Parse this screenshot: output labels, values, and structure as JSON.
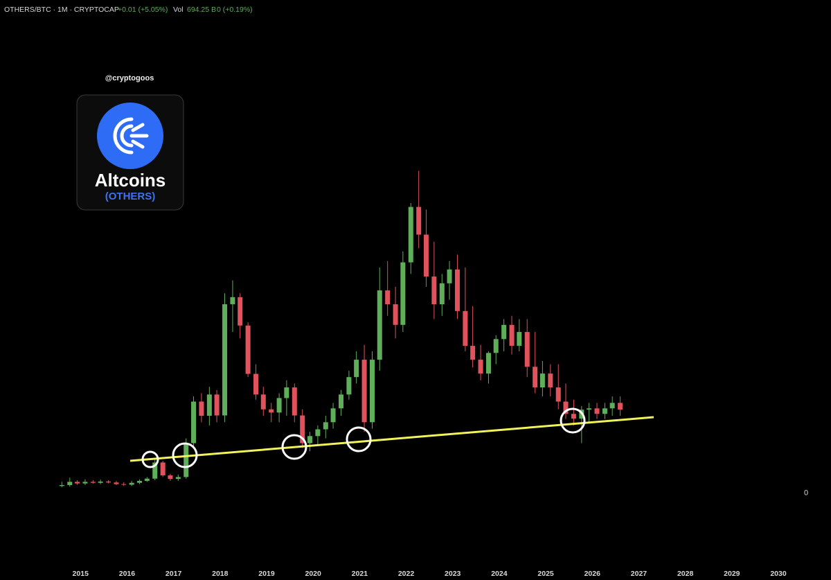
{
  "header": {
    "symbol": "OTHERS/BTC · 1M · CRYPTOCAP",
    "change": "+0.01 (+5.05%)",
    "vol_label": "Vol",
    "vol_value": "694.25 B",
    "vol_change": "0 (+0.19%)"
  },
  "watermark": {
    "handle": "@cryptogoos",
    "logo_title": "Altcoins",
    "logo_subtitle": "(OTHERS)"
  },
  "chart_data": {
    "type": "candlestick",
    "up_color": "#5fae5a",
    "down_color": "#e0525c",
    "xlim": [
      2013.27,
      2030.58
    ],
    "xticks": [
      2015,
      2016,
      2017,
      2018,
      2019,
      2020,
      2021,
      2022,
      2023,
      2024,
      2025,
      2026,
      2027,
      2028,
      2029,
      2030
    ],
    "ylim": [
      -19,
      153
    ],
    "yticks": [
      0
    ],
    "x": [
      2014.6,
      2014.77,
      2014.93,
      2015.1,
      2015.27,
      2015.43,
      2015.6,
      2015.77,
      2015.93,
      2016.1,
      2016.27,
      2016.43,
      2016.6,
      2016.77,
      2016.93,
      2017.1,
      2017.27,
      2017.43,
      2017.6,
      2017.77,
      2017.93,
      2018.1,
      2018.27,
      2018.43,
      2018.6,
      2018.77,
      2018.93,
      2019.1,
      2019.27,
      2019.43,
      2019.6,
      2019.77,
      2019.93,
      2020.1,
      2020.27,
      2020.43,
      2020.6,
      2020.77,
      2020.93,
      2021.1,
      2021.27,
      2021.43,
      2021.6,
      2021.77,
      2021.93,
      2022.1,
      2022.27,
      2022.43,
      2022.6,
      2022.77,
      2022.93,
      2023.1,
      2023.27,
      2023.43,
      2023.6,
      2023.77,
      2023.93,
      2024.1,
      2024.27,
      2024.43,
      2024.6,
      2024.77,
      2024.93,
      2025.1,
      2025.27,
      2025.43,
      2025.6,
      2025.77,
      2025.93,
      2026.1,
      2026.27,
      2026.43,
      2026.6
    ],
    "open": [
      2.2,
      2.5,
      3.5,
      3,
      3.5,
      3.2,
      3.6,
      3.3,
      2.8,
      2.6,
      3.2,
      3.8,
      4.5,
      9.5,
      5.5,
      4.4,
      5,
      15.5,
      28.4,
      24,
      30.6,
      24.1,
      58.6,
      60.8,
      52,
      37,
      30.6,
      26,
      25,
      29.5,
      32.8,
      24.1,
      15.5,
      17.7,
      19.8,
      22,
      26.3,
      30.6,
      36,
      41.4,
      22,
      41.4,
      62.9,
      58.6,
      52.2,
      71.6,
      88.8,
      80.2,
      67.2,
      58.6,
      65.1,
      69.4,
      56.5,
      45.7,
      41.4,
      37.1,
      43.5,
      47.8,
      52.2,
      45.7,
      50,
      39.2,
      32.8,
      37.1,
      32.8,
      28.4,
      24.6,
      23.1,
      25.9,
      26.3,
      24.6,
      26.3,
      28
    ],
    "high": [
      3.5,
      4.8,
      4,
      4.3,
      4,
      4.2,
      4,
      3.8,
      3.4,
      3.8,
      4.3,
      5,
      11,
      10,
      6,
      5.8,
      17,
      30,
      31,
      33,
      32,
      62,
      66,
      62,
      53,
      40,
      33,
      28,
      31,
      35,
      34,
      26,
      19,
      21,
      24,
      28,
      32,
      38,
      44,
      46,
      44,
      70,
      72,
      64,
      75,
      90,
      100,
      88,
      78,
      68,
      72,
      74,
      70,
      58,
      46,
      44,
      49,
      54,
      55,
      54,
      54,
      50,
      41,
      40,
      40,
      34,
      29,
      27,
      28,
      28,
      28,
      30,
      30
    ],
    "low": [
      1.8,
      2,
      2.6,
      2.5,
      2.9,
      2.8,
      3,
      2.5,
      2.2,
      2.2,
      2.8,
      3.5,
      4,
      5,
      3.8,
      3.8,
      4.5,
      14,
      22,
      21,
      22,
      22,
      50,
      48,
      36,
      29,
      24,
      22,
      22,
      24,
      22,
      14,
      13,
      15,
      17,
      20,
      24,
      29,
      34,
      19,
      20,
      38,
      55,
      48,
      50,
      68,
      76,
      64,
      54,
      55,
      60,
      54,
      44,
      39,
      35,
      34,
      40,
      44,
      43,
      44,
      36,
      31,
      30,
      30,
      26,
      23,
      21,
      15.5,
      22,
      23,
      23,
      24,
      24
    ],
    "close": [
      2.5,
      3.5,
      3,
      3.5,
      3.2,
      3.6,
      3.3,
      2.8,
      2.6,
      3.2,
      3.8,
      4.5,
      9.5,
      5.5,
      4.4,
      5,
      15.5,
      28.4,
      24,
      30.6,
      24.1,
      58.6,
      60.8,
      52,
      37,
      30.6,
      26,
      25,
      29.5,
      32.8,
      24.1,
      15.5,
      17.7,
      19.8,
      22,
      26.3,
      30.6,
      36,
      41.4,
      22,
      41.4,
      62.9,
      58.6,
      52.2,
      71.6,
      88.8,
      80.2,
      67.2,
      58.6,
      65.1,
      69.4,
      56.5,
      45.7,
      41.4,
      37.1,
      43.5,
      47.8,
      52.2,
      45.7,
      50,
      39.2,
      32.8,
      37.1,
      32.8,
      28.4,
      24.6,
      23.1,
      25.9,
      26.3,
      24.6,
      26.3,
      28,
      25.9
    ]
  }
}
